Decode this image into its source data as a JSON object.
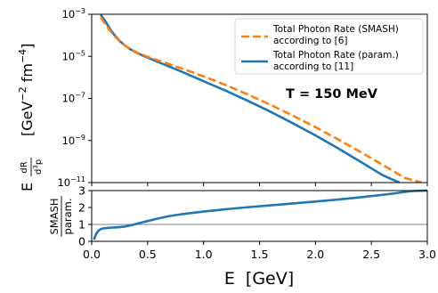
{
  "chart_data": [
    {
      "type": "line",
      "ylabel": "E dR/d³p [GeV⁻² fm⁻⁴]",
      "ylabel_parts": {
        "E": "E",
        "frac_num": "dR",
        "frac_den_d": "d",
        "frac_den_exp": "3",
        "frac_den_p": "p",
        "units_open": "[GeV",
        "units_exp1": "−2",
        "units_mid": " fm",
        "units_exp2": "−4",
        "units_close": "]"
      },
      "yscale": "log",
      "ylim": [
        1e-11,
        0.001
      ],
      "xlim": [
        0.0,
        3.0
      ],
      "ytick_labels": [
        {
          "base": "10",
          "exp": "−11"
        },
        {
          "base": "10",
          "exp": "−9"
        },
        {
          "base": "10",
          "exp": "−7"
        },
        {
          "base": "10",
          "exp": "−5"
        },
        {
          "base": "10",
          "exp": "−3"
        }
      ],
      "ytick_values": [
        1e-11,
        1e-09,
        1e-07,
        1e-05,
        0.001
      ],
      "annotation": "T = 150 MeV",
      "legend_position": "top-right",
      "series": [
        {
          "name": "Total Photon Rate (SMASH) according to [6]",
          "legend_lines": [
            "Total Photon Rate (SMASH)",
            "according to [6]"
          ],
          "color": "#ff7f0e",
          "style": "dashed",
          "x": [
            0.08,
            0.12,
            0.16,
            0.2,
            0.25,
            0.3,
            0.35,
            0.4,
            0.45,
            0.5,
            0.6,
            0.7,
            0.8,
            0.9,
            1.0,
            1.2,
            1.4,
            1.6,
            1.8,
            2.0,
            2.2,
            2.4,
            2.6,
            2.8,
            2.95
          ],
          "y": [
            0.00072,
            0.000348,
            0.000178,
            9.5e-05,
            5.2e-05,
            3.2e-05,
            2.15e-05,
            1.55e-05,
            1.2e-05,
            9.5e-06,
            6.2e-06,
            4.1e-06,
            2.7e-06,
            1.75e-06,
            1.12e-06,
            4.3e-07,
            1.5e-07,
            4.9e-08,
            1.5e-08,
            4.3e-09,
            1.15e-09,
            2.9e-10,
            7e-11,
            1.65e-11,
            1e-11
          ]
        },
        {
          "name": "Total Photon Rate (param.) according to [11]",
          "legend_lines": [
            "Total Photon Rate (param.)",
            "according to [11]"
          ],
          "color": "#1f77b4",
          "style": "solid",
          "x": [
            0.08,
            0.12,
            0.16,
            0.2,
            0.25,
            0.3,
            0.35,
            0.4,
            0.45,
            0.5,
            0.6,
            0.7,
            0.8,
            0.9,
            1.0,
            1.2,
            1.4,
            1.6,
            1.8,
            2.0,
            2.2,
            2.4,
            2.6,
            2.75
          ],
          "y": [
            0.00095,
            0.000485,
            0.000216,
            0.000107,
            5.4e-05,
            3.2e-05,
            2.1e-05,
            1.5e-05,
            1.13e-05,
            8.7e-06,
            5.2e-06,
            3.15e-06,
            1.9e-06,
            1.12e-06,
            6.6e-07,
            2.3e-07,
            7.5e-08,
            2.3e-08,
            6.5e-09,
            1.75e-09,
            4.3e-10,
            1e-10,
            2.25e-11,
            1e-11
          ]
        }
      ]
    },
    {
      "type": "line",
      "ylabel": "SMASH / param.",
      "ylabel_num": "SMASH",
      "ylabel_den": "param.",
      "xlabel": "E  [GeV]",
      "xlim": [
        0.0,
        3.0
      ],
      "ylim": [
        0,
        3
      ],
      "xtick_labels": [
        "0.0",
        "0.5",
        "1.0",
        "1.5",
        "2.0",
        "2.5",
        "3.0"
      ],
      "xtick_values": [
        0.0,
        0.5,
        1.0,
        1.5,
        2.0,
        2.5,
        3.0
      ],
      "ytick_labels": [
        "0",
        "1",
        "2",
        "3"
      ],
      "ytick_values": [
        0,
        1,
        2,
        3
      ],
      "reference_line": {
        "y": 1,
        "color": "#808080"
      },
      "series": [
        {
          "name": "",
          "color": "#1f77b4",
          "style": "solid",
          "x": [
            0.02,
            0.04,
            0.06,
            0.08,
            0.1,
            0.15,
            0.2,
            0.25,
            0.3,
            0.35,
            0.4,
            0.45,
            0.5,
            0.6,
            0.7,
            0.8,
            1.0,
            1.2,
            1.4,
            1.6,
            1.8,
            2.0,
            2.2,
            2.4,
            2.6,
            2.7,
            2.8,
            2.85,
            2.9,
            2.95,
            3.0
          ],
          "y": [
            0.1,
            0.45,
            0.62,
            0.72,
            0.76,
            0.8,
            0.82,
            0.84,
            0.88,
            0.95,
            1.03,
            1.12,
            1.2,
            1.36,
            1.5,
            1.6,
            1.76,
            1.9,
            2.02,
            2.13,
            2.24,
            2.35,
            2.47,
            2.6,
            2.75,
            2.83,
            2.92,
            2.96,
            2.98,
            2.99,
            3.0
          ]
        }
      ]
    }
  ]
}
